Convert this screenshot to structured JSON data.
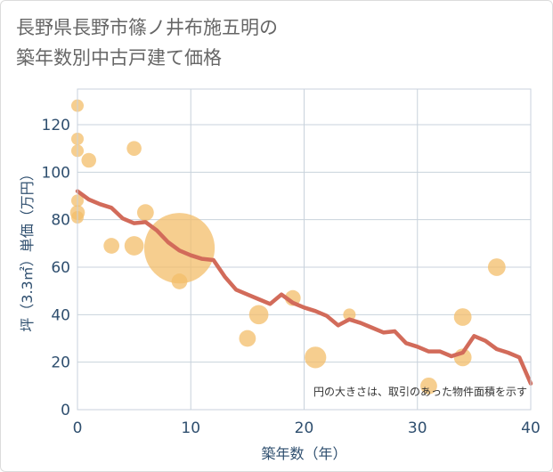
{
  "title_lines": [
    "長野県長野市篠ノ井布施五明の",
    "築年数別中古戸建て価格"
  ],
  "colors": {
    "bubble": "#f3bd6a",
    "trend": "#d26b5a",
    "grid": "#c8d2dc",
    "axis_text": "#2f4f6f",
    "frame": "#dcdcdc"
  },
  "chart_data": {
    "type": "scatter",
    "xlabel": "築年数（年）",
    "ylabel": "坪（3.3㎡）単価（万円）",
    "xlim": [
      0,
      40
    ],
    "ylim": [
      0,
      135
    ],
    "x_ticks": [
      0,
      10,
      20,
      30,
      40
    ],
    "y_ticks": [
      0,
      20,
      40,
      60,
      80,
      100,
      120
    ],
    "grid": true,
    "note": "円の大きさは、取引のあった物件面積を示す",
    "bubbles": [
      {
        "x": 0,
        "y": 128,
        "size": 1
      },
      {
        "x": 0,
        "y": 114,
        "size": 1
      },
      {
        "x": 0,
        "y": 109,
        "size": 1
      },
      {
        "x": 0,
        "y": 88,
        "size": 1
      },
      {
        "x": 0,
        "y": 83,
        "size": 1.4
      },
      {
        "x": 0,
        "y": 81,
        "size": 1
      },
      {
        "x": 1,
        "y": 105,
        "size": 1.4
      },
      {
        "x": 3,
        "y": 69,
        "size": 1.6
      },
      {
        "x": 5,
        "y": 110,
        "size": 1.4
      },
      {
        "x": 5,
        "y": 69,
        "size": 2.4
      },
      {
        "x": 6,
        "y": 83,
        "size": 1.8
      },
      {
        "x": 9,
        "y": 68,
        "size": 32
      },
      {
        "x": 9,
        "y": 54,
        "size": 1.6
      },
      {
        "x": 15,
        "y": 30,
        "size": 1.8
      },
      {
        "x": 16,
        "y": 40,
        "size": 2.4
      },
      {
        "x": 19,
        "y": 47,
        "size": 1.6
      },
      {
        "x": 21,
        "y": 22,
        "size": 3
      },
      {
        "x": 24,
        "y": 40,
        "size": 1
      },
      {
        "x": 31,
        "y": 10,
        "size": 1.8
      },
      {
        "x": 34,
        "y": 39,
        "size": 2
      },
      {
        "x": 34,
        "y": 22,
        "size": 2
      },
      {
        "x": 37,
        "y": 60,
        "size": 2
      }
    ],
    "trend": {
      "x": [
        0,
        1,
        2,
        3,
        4,
        5,
        6,
        7,
        8,
        9,
        10,
        11,
        12,
        13,
        14,
        15,
        16,
        17,
        18,
        19,
        20,
        21,
        22,
        23,
        24,
        25,
        26,
        27,
        28,
        29,
        30,
        31,
        32,
        33,
        34,
        35,
        36,
        37,
        38,
        39,
        40
      ],
      "y": [
        92,
        88.5,
        86.5,
        85,
        80.5,
        78.5,
        79,
        75.5,
        70.5,
        67,
        65,
        63.5,
        63,
        56,
        50.5,
        48.5,
        46.5,
        44.5,
        48.5,
        45,
        43,
        41.5,
        39.5,
        35.5,
        38,
        36.5,
        34.5,
        32.5,
        33,
        28,
        26.5,
        24.5,
        24.5,
        22.5,
        24,
        31,
        29,
        25.5,
        24,
        22,
        11
      ]
    }
  }
}
